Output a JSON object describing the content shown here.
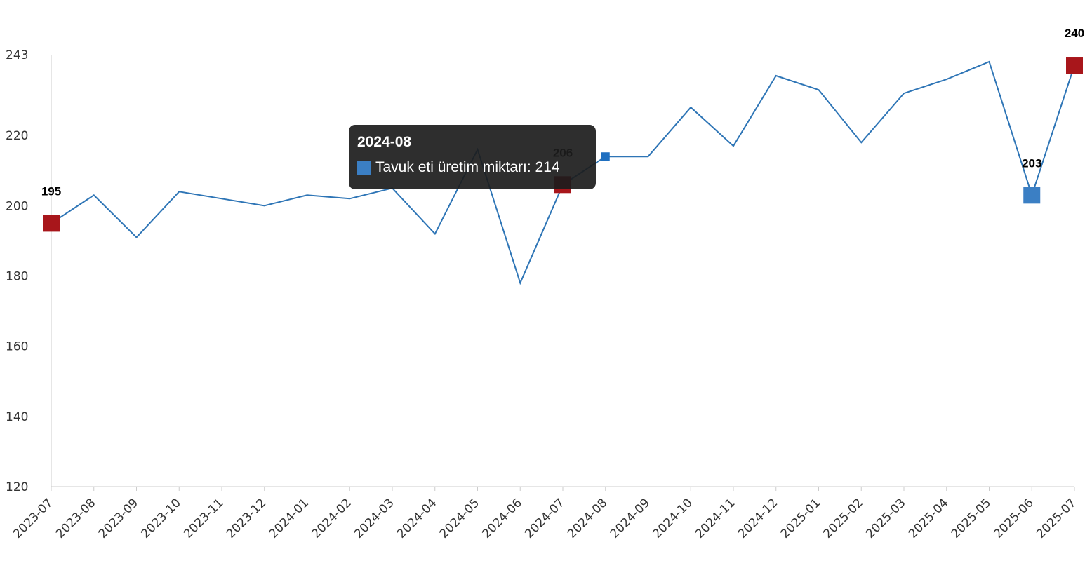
{
  "chart_data": {
    "type": "line",
    "title": "",
    "xlabel": "",
    "ylabel": "",
    "categories": [
      "2023-07",
      "2023-08",
      "2023-09",
      "2023-10",
      "2023-11",
      "2023-12",
      "2024-01",
      "2024-02",
      "2024-03",
      "2024-04",
      "2024-05",
      "2024-06",
      "2024-07",
      "2024-08",
      "2024-09",
      "2024-10",
      "2024-11",
      "2024-12",
      "2025-01",
      "2025-02",
      "2025-03",
      "2025-04",
      "2025-05",
      "2025-06",
      "2025-07"
    ],
    "series": [
      {
        "name": "Tavuk eti üretim miktarı",
        "values": [
          195,
          203,
          191,
          204,
          202,
          200,
          203,
          202,
          205,
          192,
          216,
          178,
          206,
          214,
          214,
          228,
          217,
          237,
          233,
          218,
          232,
          236,
          241,
          203,
          240
        ]
      }
    ],
    "yticks": [
      120,
      140,
      160,
      180,
      200,
      220,
      243
    ],
    "ylim": [
      120,
      243
    ],
    "grid": false,
    "legend": "none",
    "line_color": "#2e75b6",
    "highlights": [
      {
        "index": 0,
        "label": "195",
        "color": "#a8161b"
      },
      {
        "index": 12,
        "label": "206",
        "color": "#a8161b"
      },
      {
        "index": 23,
        "label": "203",
        "color": "#3b7fc4"
      },
      {
        "index": 24,
        "label": "240",
        "color": "#a8161b"
      }
    ],
    "hover_index": 13,
    "tooltip": {
      "title": "2024-08",
      "series_label": "Tavuk eti üretim miktarı",
      "value": "214",
      "text": "Tavuk eti üretim miktarı: 214",
      "swatch_color": "#3b7fc4"
    }
  }
}
